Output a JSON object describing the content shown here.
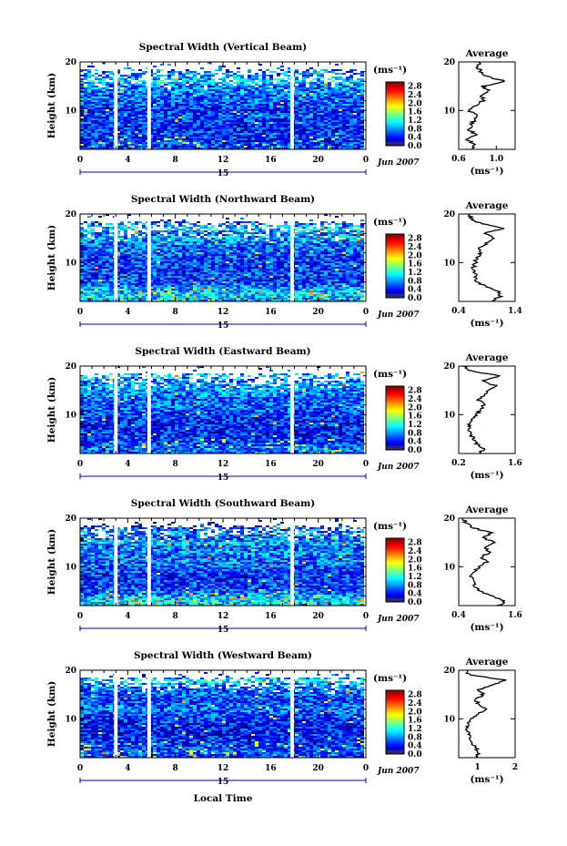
{
  "figure": {
    "xlabel": "Local Time",
    "date_label": "Jun 2007",
    "day_label": "15",
    "avg_title": "Average",
    "ylabel": "Height (km)",
    "colorbar_unit": "(ms⁻¹)",
    "avg_unit": "(ms⁻¹)"
  },
  "chart_data": [
    {
      "type": "heatmap",
      "title": "Spectral Width (Vertical Beam)",
      "xlabel": "Local Time",
      "ylabel": "Height (km)",
      "x_ticks": [
        "0",
        "4",
        "8",
        "12",
        "16",
        "20",
        "0"
      ],
      "xlim": [
        0,
        24
      ],
      "y_ticks": [
        "10",
        "20"
      ],
      "ylim": [
        2,
        20
      ],
      "colorbar_ticks": [
        "0.0",
        "0.4",
        "0.8",
        "1.2",
        "1.6",
        "2.0",
        "2.4",
        "2.8"
      ],
      "clim": [
        0.0,
        3.0
      ],
      "data_gaps_hours": [
        3.0,
        5.8,
        17.8
      ],
      "average_profile": {
        "xlim": [
          0.6,
          1.2
        ],
        "x_ticks": [
          "0.6",
          "1.0"
        ],
        "y_ticks": [
          "10",
          "20"
        ],
        "height": [
          2,
          3,
          4,
          5,
          6,
          7,
          8,
          9,
          10,
          11,
          12,
          13,
          14,
          15,
          16,
          17,
          18,
          19,
          20
        ],
        "value": [
          0.72,
          0.78,
          0.68,
          0.8,
          0.7,
          0.74,
          0.76,
          0.82,
          0.7,
          0.78,
          0.86,
          0.84,
          0.92,
          0.86,
          1.1,
          0.9,
          0.84,
          0.8,
          0.82
        ]
      }
    },
    {
      "type": "heatmap",
      "title": "Spectral Width (Northward Beam)",
      "xlabel": "Local Time",
      "ylabel": "Height (km)",
      "x_ticks": [
        "0",
        "4",
        "8",
        "12",
        "16",
        "20",
        "0"
      ],
      "xlim": [
        0,
        24
      ],
      "y_ticks": [
        "10",
        "20"
      ],
      "ylim": [
        2,
        20
      ],
      "colorbar_ticks": [
        "0.0",
        "0.4",
        "0.8",
        "1.2",
        "1.6",
        "2.0",
        "2.4",
        "2.8"
      ],
      "clim": [
        0.0,
        3.0
      ],
      "data_gaps_hours": [
        3.0,
        5.8,
        17.8
      ],
      "average_profile": {
        "xlim": [
          0.4,
          1.4
        ],
        "x_ticks": [
          "0.4",
          "1.4"
        ],
        "y_ticks": [
          "10",
          "20"
        ],
        "height": [
          2,
          3,
          4,
          5,
          6,
          7,
          8,
          9,
          10,
          11,
          12,
          13,
          14,
          15,
          16,
          17,
          18,
          19,
          20
        ],
        "value": [
          0.95,
          1.15,
          1.1,
          0.9,
          0.72,
          0.7,
          0.68,
          0.66,
          0.7,
          0.72,
          0.8,
          0.78,
          0.9,
          1.05,
          0.85,
          1.2,
          0.8,
          0.62,
          0.6
        ]
      }
    },
    {
      "type": "heatmap",
      "title": "Spectral Width (Eastward Beam)",
      "xlabel": "Local Time",
      "ylabel": "Height (km)",
      "x_ticks": [
        "0",
        "4",
        "8",
        "12",
        "16",
        "20",
        "0"
      ],
      "xlim": [
        0,
        24
      ],
      "y_ticks": [
        "10",
        "20"
      ],
      "ylim": [
        2,
        20
      ],
      "colorbar_ticks": [
        "0.0",
        "0.4",
        "0.8",
        "1.2",
        "1.6",
        "2.0",
        "2.4",
        "2.8"
      ],
      "clim": [
        0.0,
        3.0
      ],
      "data_gaps_hours": [
        3.0,
        5.8,
        17.8
      ],
      "average_profile": {
        "xlim": [
          0.2,
          1.6
        ],
        "x_ticks": [
          "0.2",
          "1.6"
        ],
        "y_ticks": [
          "10",
          "20"
        ],
        "height": [
          2,
          3,
          4,
          5,
          6,
          7,
          8,
          9,
          10,
          11,
          12,
          13,
          14,
          15,
          16,
          17,
          18,
          19,
          20
        ],
        "value": [
          0.7,
          0.85,
          0.65,
          0.55,
          0.5,
          0.48,
          0.45,
          0.5,
          0.62,
          0.75,
          0.82,
          0.7,
          0.85,
          0.95,
          1.1,
          0.8,
          1.2,
          0.5,
          0.35
        ]
      }
    },
    {
      "type": "heatmap",
      "title": "Spectral Width (Southward Beam)",
      "xlabel": "Local Time",
      "ylabel": "Height (km)",
      "x_ticks": [
        "0",
        "4",
        "8",
        "12",
        "16",
        "20",
        "0"
      ],
      "xlim": [
        0,
        24
      ],
      "y_ticks": [
        "10",
        "20"
      ],
      "ylim": [
        2,
        20
      ],
      "colorbar_ticks": [
        "0.0",
        "0.4",
        "0.8",
        "1.2",
        "1.6",
        "2.0",
        "2.4",
        "2.8"
      ],
      "clim": [
        0.0,
        3.0
      ],
      "data_gaps_hours": [
        3.0,
        5.8,
        17.8
      ],
      "average_profile": {
        "xlim": [
          0.4,
          1.6
        ],
        "x_ticks": [
          "0.4",
          "1.6"
        ],
        "y_ticks": [
          "10",
          "20"
        ],
        "height": [
          2,
          3,
          4,
          5,
          6,
          7,
          8,
          9,
          10,
          11,
          12,
          13,
          14,
          15,
          16,
          17,
          18,
          19,
          20
        ],
        "value": [
          1.25,
          1.4,
          1.1,
          0.85,
          0.75,
          0.7,
          0.68,
          0.72,
          0.85,
          1.0,
          0.9,
          1.05,
          0.95,
          1.2,
          0.9,
          1.1,
          0.7,
          0.55,
          0.5
        ]
      }
    },
    {
      "type": "heatmap",
      "title": "Spectral Width (Westward Beam)",
      "xlabel": "Local Time",
      "ylabel": "Height (km)",
      "x_ticks": [
        "0",
        "4",
        "8",
        "12",
        "16",
        "20",
        "0"
      ],
      "xlim": [
        0,
        24
      ],
      "y_ticks": [
        "10",
        "20"
      ],
      "ylim": [
        2,
        20
      ],
      "colorbar_ticks": [
        "0.0",
        "0.4",
        "0.8",
        "1.2",
        "1.6",
        "2.0",
        "2.4",
        "2.8"
      ],
      "clim": [
        0.0,
        3.0
      ],
      "data_gaps_hours": [
        3.0,
        5.8,
        17.8
      ],
      "average_profile": {
        "xlim": [
          0.5,
          2.0
        ],
        "x_ticks": [
          "1",
          "2"
        ],
        "y_ticks": [
          "10",
          "20"
        ],
        "height": [
          2,
          3,
          4,
          5,
          6,
          7,
          8,
          9,
          10,
          11,
          12,
          13,
          14,
          15,
          16,
          17,
          18,
          19,
          20
        ],
        "value": [
          0.95,
          1.05,
          0.95,
          0.85,
          0.78,
          0.75,
          0.72,
          0.78,
          0.85,
          1.0,
          1.2,
          1.05,
          0.95,
          1.15,
          1.05,
          1.4,
          1.75,
          0.8,
          0.7
        ]
      }
    }
  ]
}
